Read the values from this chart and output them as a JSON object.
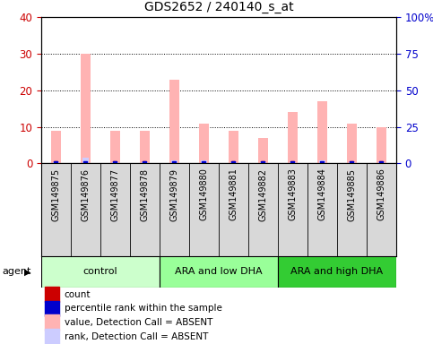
{
  "title": "GDS2652 / 240140_s_at",
  "samples": [
    "GSM149875",
    "GSM149876",
    "GSM149877",
    "GSM149878",
    "GSM149879",
    "GSM149880",
    "GSM149881",
    "GSM149882",
    "GSM149883",
    "GSM149884",
    "GSM149885",
    "GSM149886"
  ],
  "count_values": [
    9,
    30,
    9,
    9,
    23,
    11,
    9,
    7,
    14,
    17,
    11,
    10
  ],
  "percentile_values": [
    1,
    4,
    1,
    1,
    2,
    2,
    1,
    1,
    1,
    2,
    1,
    1
  ],
  "groups": [
    {
      "label": "control",
      "start": 0,
      "end": 4,
      "color": "#ccffcc"
    },
    {
      "label": "ARA and low DHA",
      "start": 4,
      "end": 8,
      "color": "#99ff99"
    },
    {
      "label": "ARA and high DHA",
      "start": 8,
      "end": 12,
      "color": "#33cc33"
    }
  ],
  "ylim_left": [
    0,
    40
  ],
  "ylim_right": [
    0,
    100
  ],
  "yticks_left": [
    0,
    10,
    20,
    30,
    40
  ],
  "yticks_right": [
    0,
    25,
    50,
    75,
    100
  ],
  "yticklabels_right": [
    "0",
    "25",
    "50",
    "75",
    "100%"
  ],
  "bar_width": 0.35,
  "count_color": "#ffb3b3",
  "percentile_color": "#ccccff",
  "count_marker_color": "#cc0000",
  "percentile_marker_color": "#0000cc",
  "plot_bg_color": "#ffffff",
  "sample_area_bg": "#d8d8d8",
  "left_tick_color": "#cc0000",
  "right_tick_color": "#0000cc",
  "legend_items": [
    {
      "color": "#cc0000",
      "label": "count"
    },
    {
      "color": "#0000cc",
      "label": "percentile rank within the sample"
    },
    {
      "color": "#ffb3b3",
      "label": "value, Detection Call = ABSENT"
    },
    {
      "color": "#ccccff",
      "label": "rank, Detection Call = ABSENT"
    }
  ],
  "figsize": [
    4.83,
    3.84
  ],
  "dpi": 100
}
